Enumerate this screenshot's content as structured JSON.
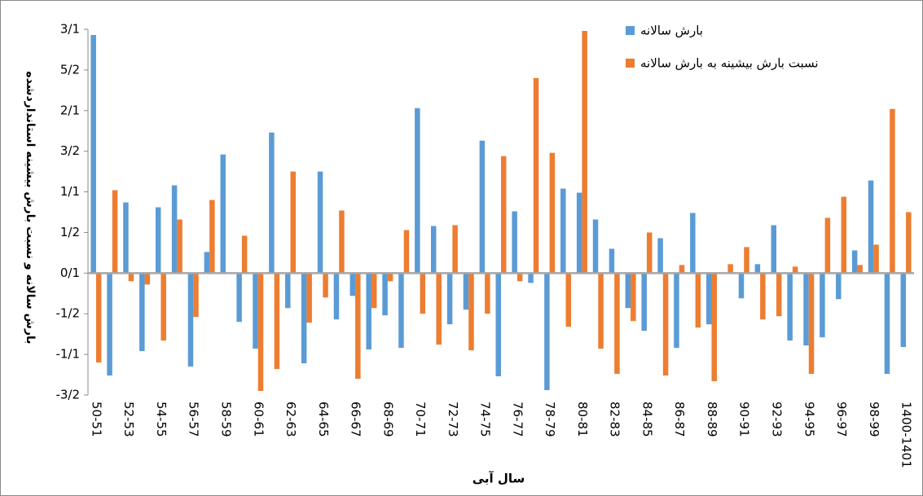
{
  "chart_data": {
    "type": "bar",
    "y_label": "بارش سالانه و نسبت بارش بیشینه استانداردشده",
    "x_label": "سال آبی",
    "categories": [
      "50-51",
      null,
      "52-53",
      null,
      "54-55",
      null,
      "56-57",
      null,
      "58-59",
      null,
      "60-61",
      null,
      "62-63",
      null,
      "64-65",
      null,
      "66-67",
      null,
      "68-69",
      null,
      "70-71",
      null,
      "72-73",
      null,
      "74-75",
      null,
      "76-77",
      null,
      "78-79",
      null,
      "80-81",
      null,
      "82-83",
      null,
      "84-85",
      null,
      "86-87",
      null,
      "88-89",
      null,
      "90-91",
      null,
      "92-93",
      null,
      "94-95",
      null,
      "96-97",
      null,
      "98-99",
      null,
      "1400-1401"
    ],
    "series": [
      {
        "name": "بارش سالانه",
        "color": "#5b9bd5",
        "values": [
          2.93,
          -1.26,
          0.87,
          -0.96,
          0.81,
          1.08,
          -1.15,
          0.26,
          1.46,
          -0.6,
          -0.93,
          1.73,
          -0.43,
          -1.11,
          1.25,
          -0.57,
          -0.28,
          -0.94,
          -0.52,
          -0.92,
          2.03,
          0.58,
          -0.63,
          -0.45,
          1.63,
          -1.27,
          0.76,
          -0.12,
          -1.44,
          1.04,
          0.99,
          0.66,
          0.3,
          -0.43,
          -0.71,
          0.43,
          -0.92,
          0.74,
          -0.63,
          0,
          -0.31,
          0.11,
          0.59,
          -0.83,
          -0.89,
          -0.79,
          -0.32,
          0.28,
          1.14,
          -1.24,
          -0.91
        ]
      },
      {
        "name": "نسبت بارش بیشینه به بارش سالانه",
        "color": "#ed7d31",
        "values": [
          -1.1,
          1.02,
          -0.1,
          -0.14,
          -0.83,
          0.66,
          -0.54,
          0.9,
          0,
          0.46,
          -1.45,
          -1.18,
          1.25,
          -0.61,
          -0.3,
          0.77,
          -1.3,
          -0.43,
          -0.1,
          0.53,
          -0.5,
          -0.88,
          0.59,
          -0.95,
          -0.5,
          1.44,
          -0.1,
          2.4,
          1.48,
          -0.66,
          2.98,
          -0.93,
          -1.24,
          -0.59,
          0.5,
          -1.26,
          0.1,
          -0.67,
          -1.33,
          0.11,
          0.32,
          -0.57,
          -0.53,
          0.08,
          -1.24,
          0.68,
          0.94,
          0.1,
          0.35,
          2.02,
          0.75
        ]
      }
    ],
    "ylim": [
      -1.5,
      3
    ],
    "yticks": [
      {
        "value": -1.5,
        "label": "-3/2"
      },
      {
        "value": -1,
        "label": "-1/1"
      },
      {
        "value": -0.5,
        "label": "-1/2"
      },
      {
        "value": 0,
        "label": "0/1"
      },
      {
        "value": 0.5,
        "label": "1/2"
      },
      {
        "value": 1,
        "label": "1/1"
      },
      {
        "value": 1.5,
        "label": "3/2"
      },
      {
        "value": 2,
        "label": "2/1"
      },
      {
        "value": 2.5,
        "label": "5/2"
      },
      {
        "value": 3,
        "label": "3/1"
      }
    ],
    "grid": false
  }
}
